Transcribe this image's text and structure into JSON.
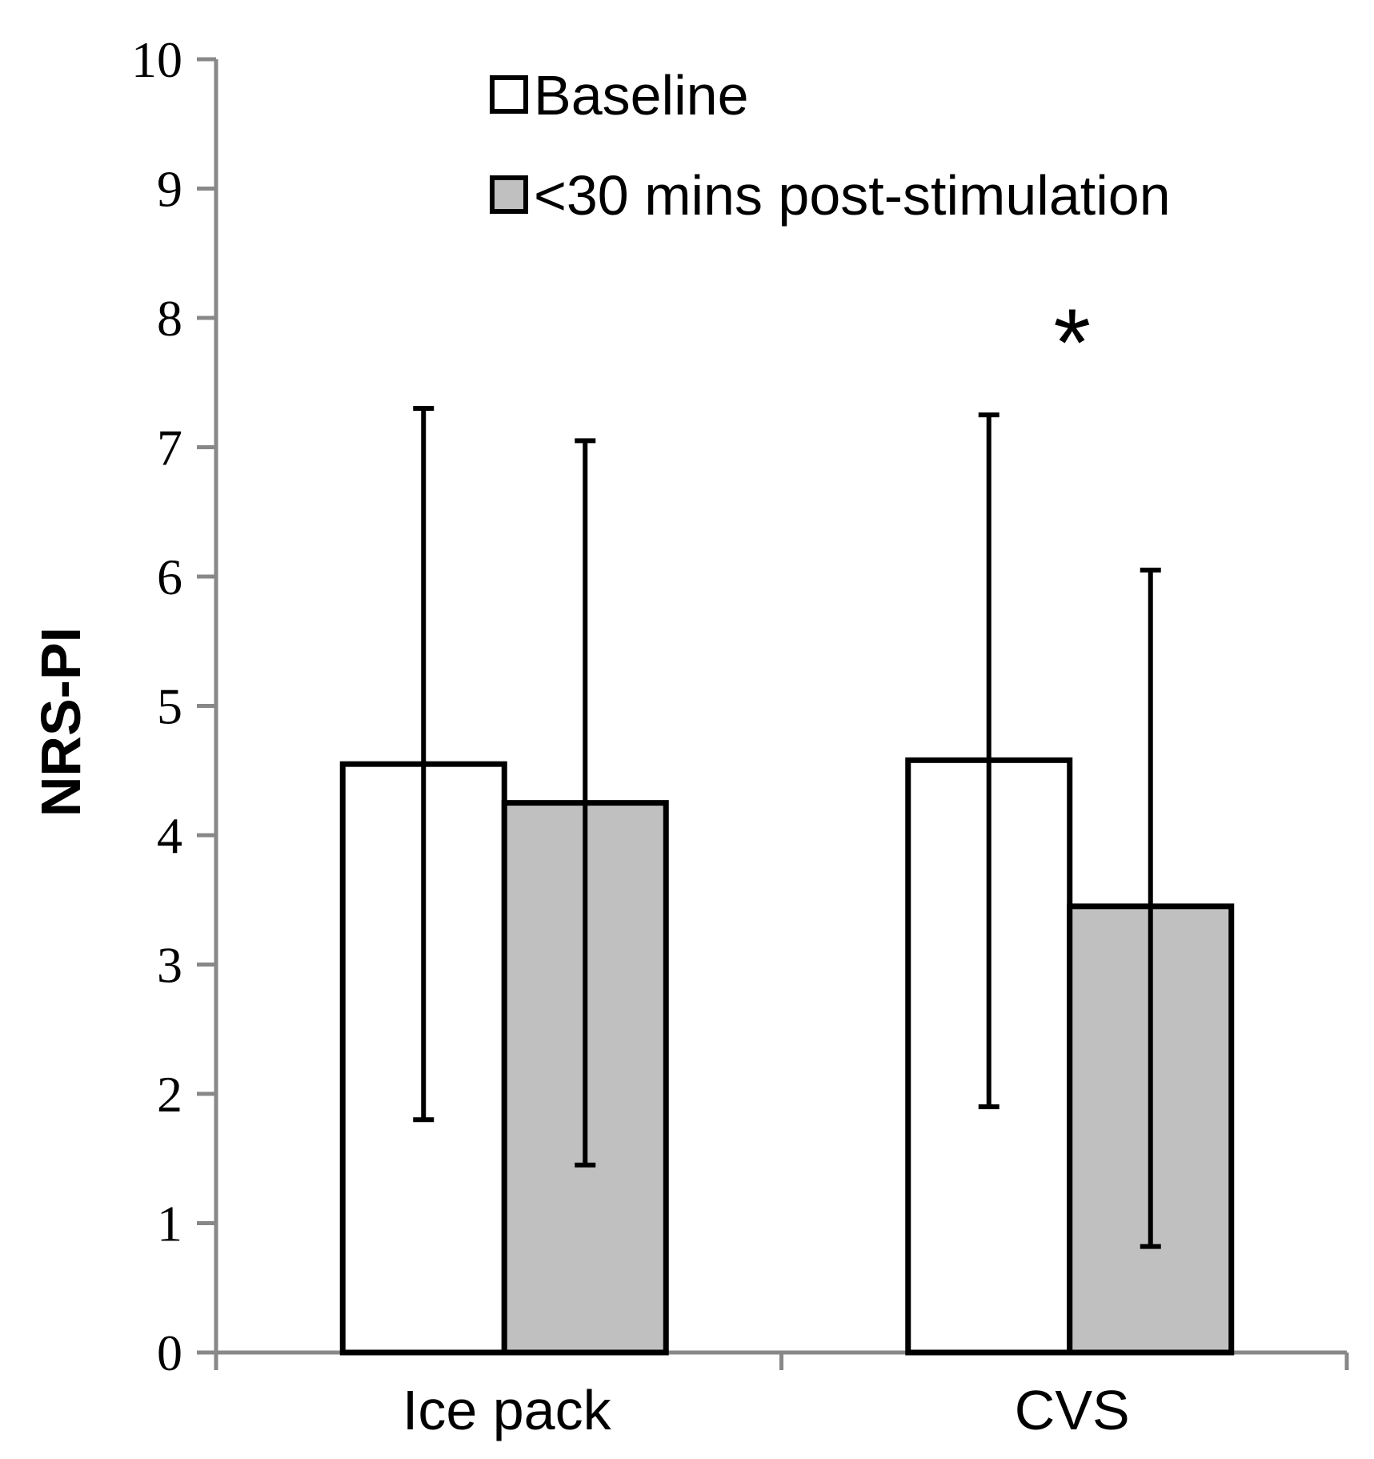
{
  "chart_data": {
    "type": "bar",
    "title": "",
    "xlabel": "",
    "ylabel": "NRS-PI",
    "ylim": [
      0,
      10
    ],
    "yticks": [
      0,
      1,
      2,
      3,
      4,
      5,
      6,
      7,
      8,
      9,
      10
    ],
    "categories": [
      "Ice pack",
      "CVS"
    ],
    "series": [
      {
        "name": "Baseline",
        "color": "#ffffff",
        "values": [
          4.55,
          4.58
        ],
        "error_low": [
          1.8,
          1.9
        ],
        "error_high": [
          7.3,
          7.25
        ]
      },
      {
        "name": "<30 mins post-stimulation",
        "color": "#c0c0c0",
        "values": [
          4.25,
          3.45
        ],
        "error_low": [
          1.45,
          0.82
        ],
        "error_high": [
          7.05,
          6.05
        ]
      }
    ],
    "annotations": [
      {
        "text": "*",
        "category": "CVS",
        "y": 8.1
      }
    ],
    "legend_position": "top-right",
    "grid": false
  }
}
